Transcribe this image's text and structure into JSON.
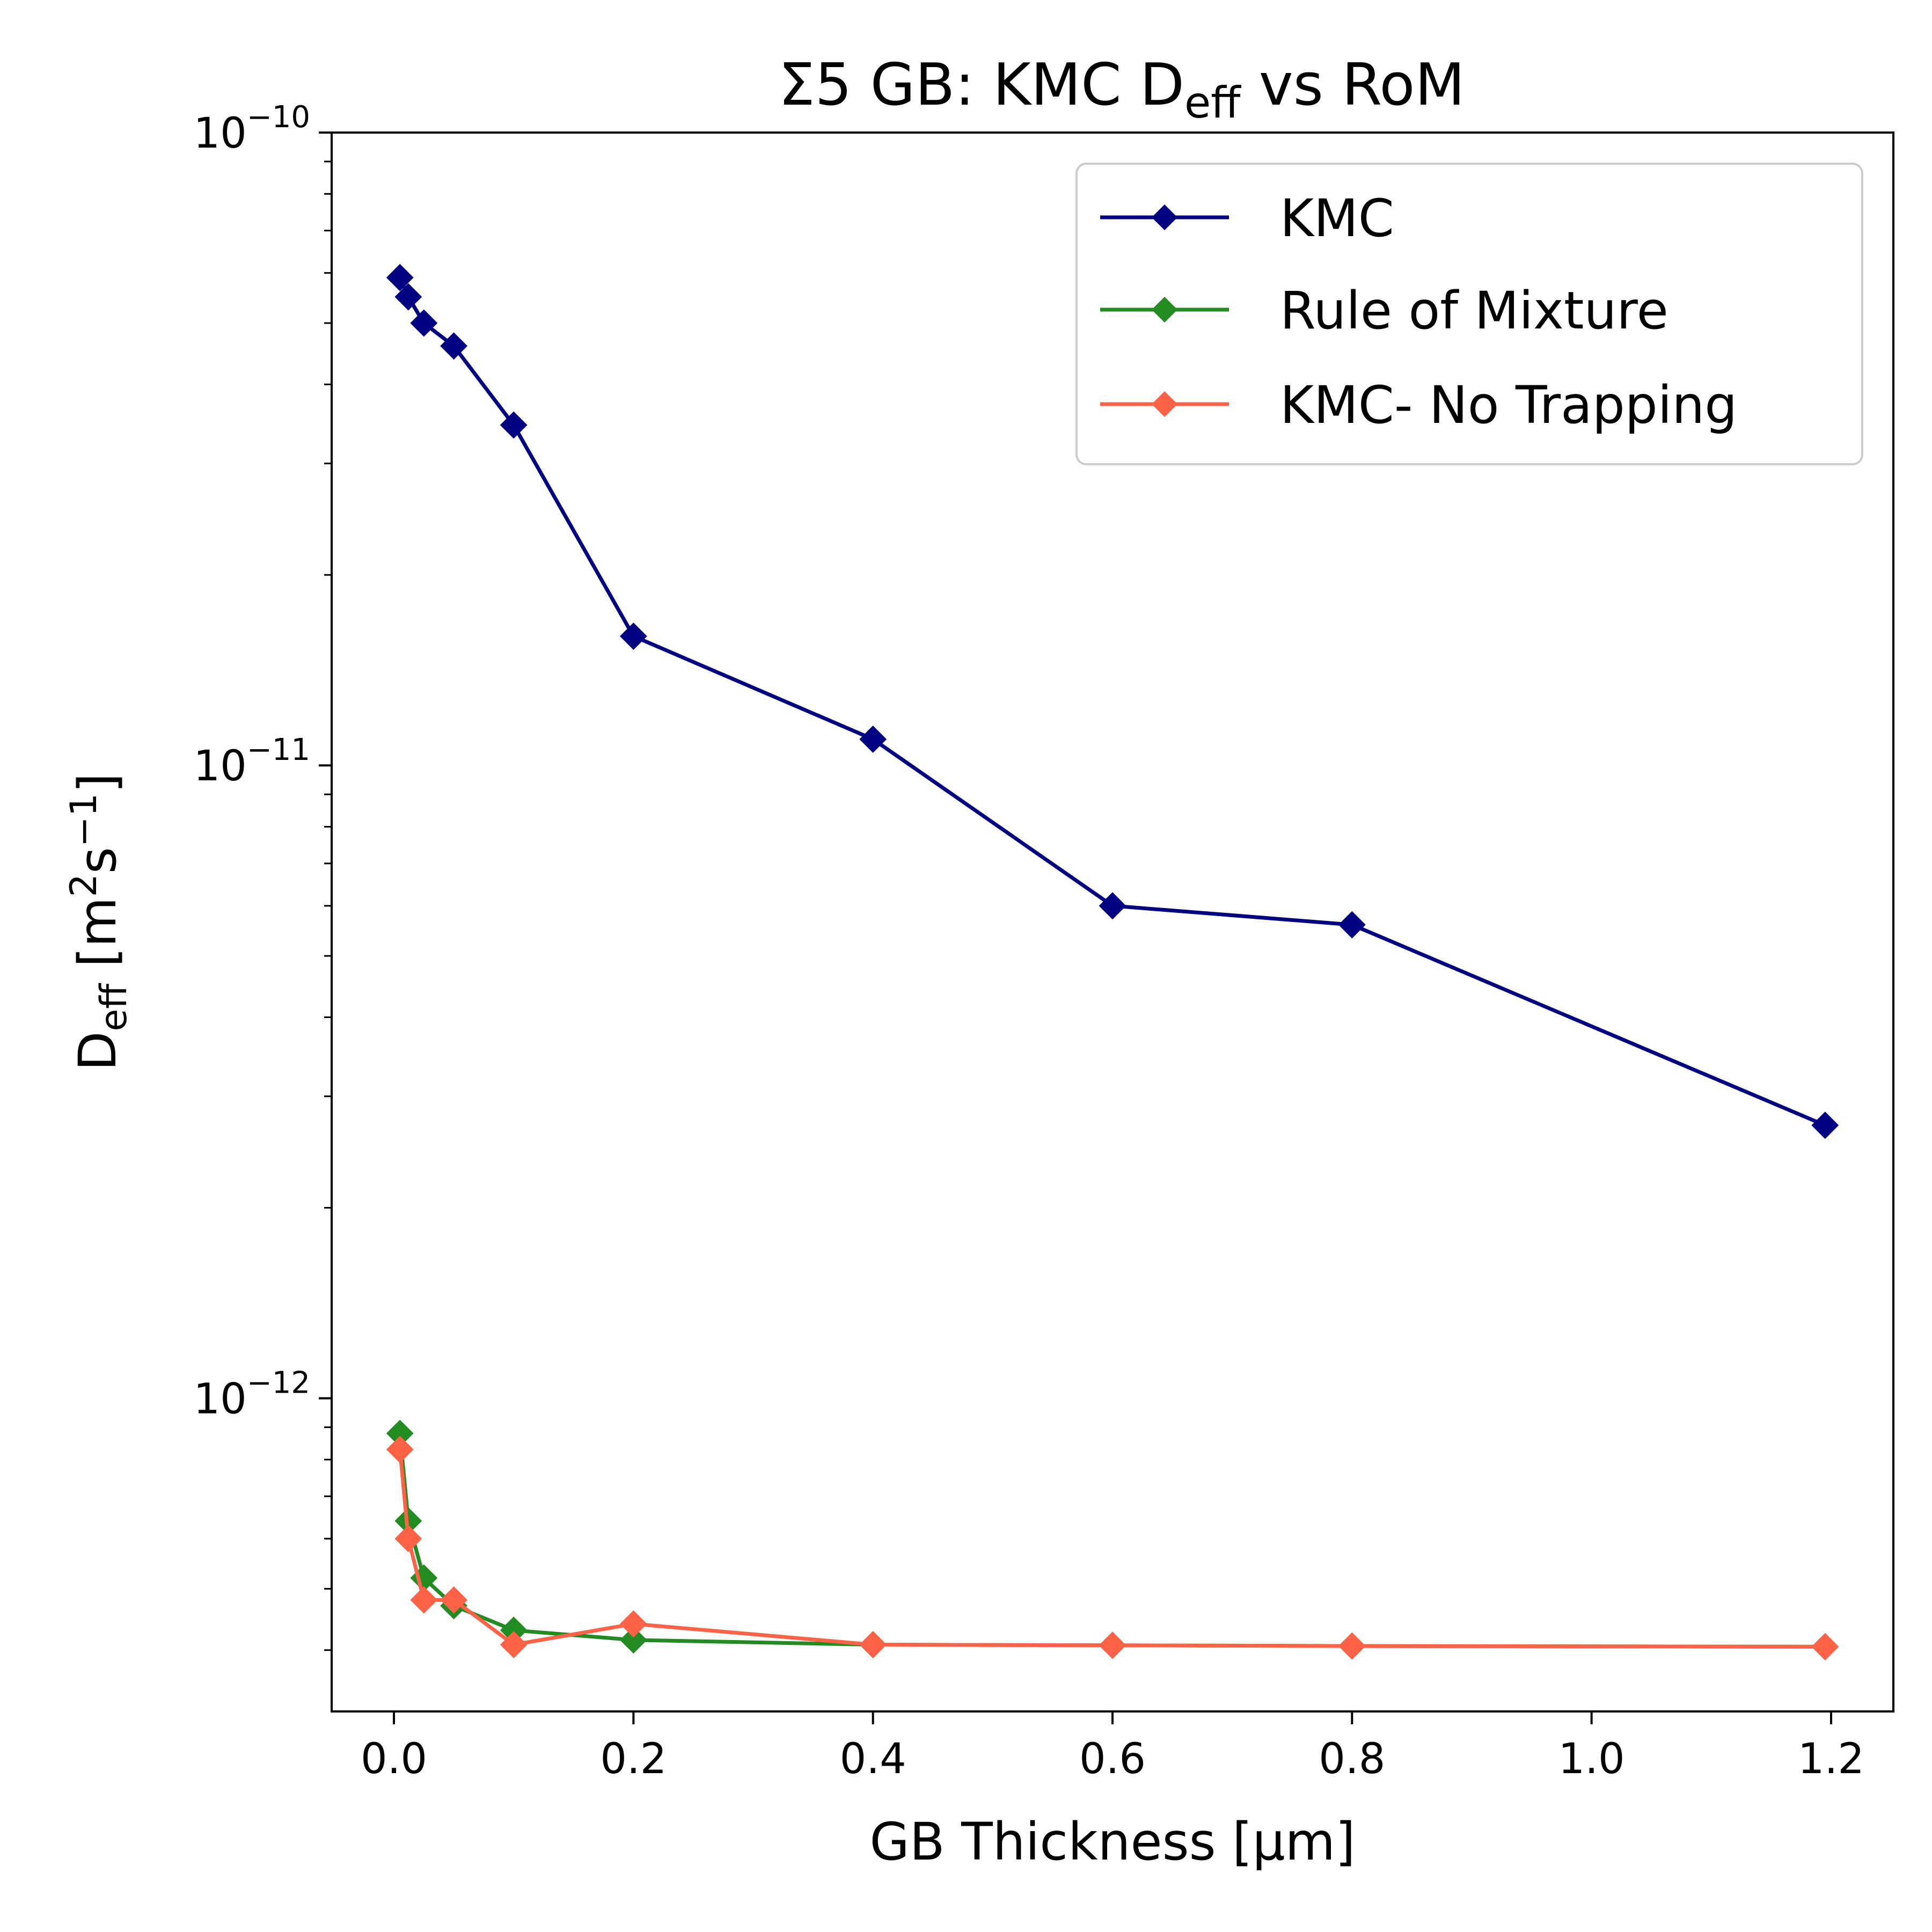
{
  "chart_data": {
    "type": "line",
    "title": "Σ5 GB: KMC D",
    "title_sub": "eff",
    "title_suffix": " vs RoM",
    "xlabel": "GB Thickness [μm]",
    "ylabel": {
      "main": "D",
      "sub": "eff",
      "unit_open": " [m",
      "unit_sup1": "2",
      "unit_mid": "s",
      "unit_sup2": "−1",
      "unit_close": "]"
    },
    "xscale": "linear",
    "yscale": "log",
    "xlim": [
      -0.052,
      1.252
    ],
    "ylim": [
      3.2e-13,
      1e-10
    ],
    "xticks": [
      0.0,
      0.2,
      0.4,
      0.6,
      0.8,
      1.0,
      1.2
    ],
    "xtick_labels": [
      "0.0",
      "0.2",
      "0.4",
      "0.6",
      "0.8",
      "1.0",
      "1.2"
    ],
    "yticks": [
      {
        "value": 1e-10,
        "base": "10",
        "exp": "−10"
      },
      {
        "value": 1e-11,
        "base": "10",
        "exp": "−11"
      },
      {
        "value": 1e-12,
        "base": "10",
        "exp": "−12"
      }
    ],
    "legend_position": "upper right",
    "series": [
      {
        "name": "KMC",
        "color": "#000080",
        "marker": "diamond",
        "x": [
          0.005,
          0.012,
          0.025,
          0.05,
          0.1,
          0.2,
          0.4,
          0.6,
          0.8,
          1.195
        ],
        "y": [
          5.9e-11,
          5.5e-11,
          5e-11,
          4.6e-11,
          3.45e-11,
          1.6e-11,
          1.1e-11,
          6e-12,
          5.6e-12,
          2.7e-12
        ]
      },
      {
        "name": "Rule of Mixture",
        "color": "#228B22",
        "marker": "diamond",
        "x": [
          0.005,
          0.012,
          0.025,
          0.05,
          0.1,
          0.2,
          0.4,
          0.6,
          0.8,
          1.195
        ],
        "y": [
          8.8e-13,
          6.4e-13,
          5.2e-13,
          4.7e-13,
          4.3e-13,
          4.15e-13,
          4.08e-13,
          4.07e-13,
          4.06e-13,
          4.05e-13
        ]
      },
      {
        "name": "KMC- No Trapping",
        "color": "#FF6347",
        "marker": "diamond",
        "x": [
          0.005,
          0.012,
          0.025,
          0.05,
          0.1,
          0.2,
          0.4,
          0.6,
          0.8,
          1.195
        ],
        "y": [
          8.3e-13,
          6e-13,
          4.8e-13,
          4.8e-13,
          4.08e-13,
          4.4e-13,
          4.08e-13,
          4.07e-13,
          4.06e-13,
          4.05e-13
        ]
      }
    ]
  }
}
